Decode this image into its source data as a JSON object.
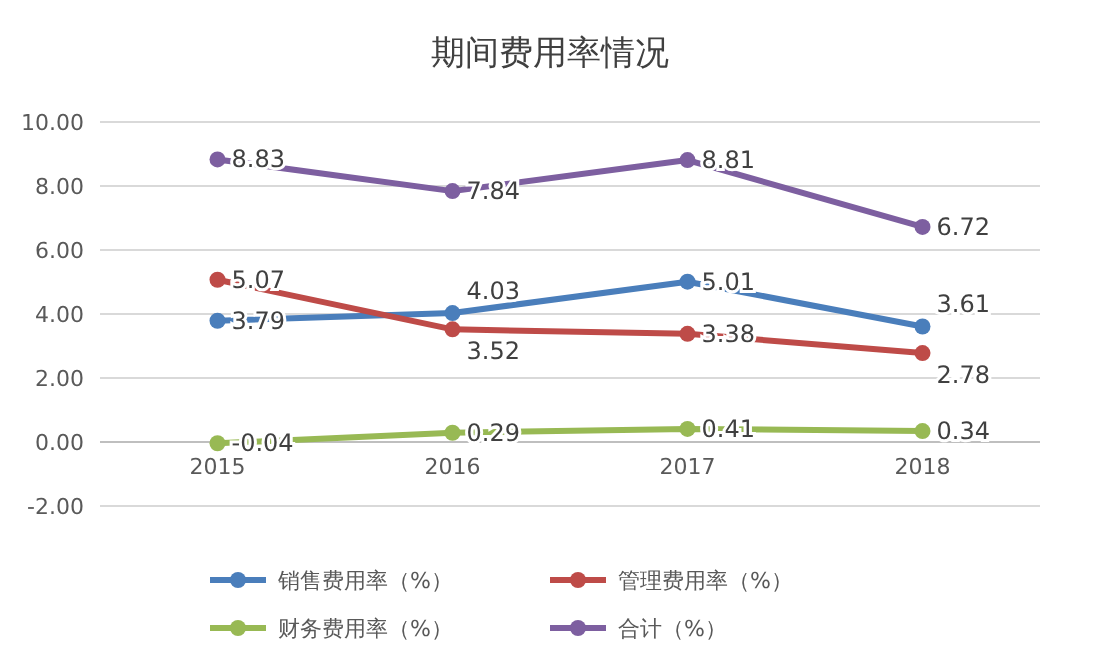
{
  "chart_data": {
    "type": "line",
    "title": "期间费用率情况",
    "categories": [
      "2015",
      "2016",
      "2017",
      "2018"
    ],
    "series": [
      {
        "name": "销售费用率（%）",
        "color": "#4a7ebb",
        "values": [
          3.79,
          4.03,
          5.01,
          3.61
        ]
      },
      {
        "name": "管理费用率（%）",
        "color": "#be4b48",
        "values": [
          5.07,
          3.52,
          3.38,
          2.78
        ]
      },
      {
        "name": "财务费用率（%）",
        "color": "#98b954",
        "values": [
          -0.04,
          0.29,
          0.41,
          0.34
        ]
      },
      {
        "name": "合计（%）",
        "color": "#7d5fa0",
        "values": [
          8.83,
          7.84,
          8.81,
          6.72
        ]
      }
    ],
    "ylim": [
      -2,
      10
    ],
    "yticks": [
      {
        "value": -2,
        "label": "-2.00"
      },
      {
        "value": 0,
        "label": "0.00"
      },
      {
        "value": 2,
        "label": "2.00"
      },
      {
        "value": 4,
        "label": "4.00"
      },
      {
        "value": 6,
        "label": "6.00"
      },
      {
        "value": 8,
        "label": "8.00"
      },
      {
        "value": 10,
        "label": "10.00"
      }
    ],
    "grid": "y",
    "legend": "bottom",
    "marker": "circle",
    "line_style": "solid",
    "data_labels": true
  }
}
